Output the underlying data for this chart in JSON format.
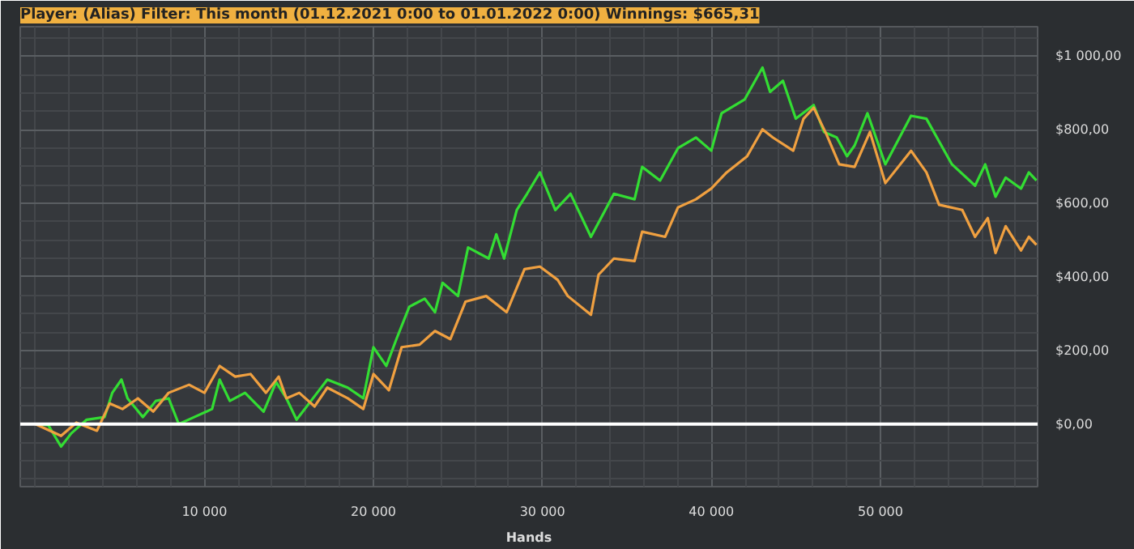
{
  "chart_data": {
    "type": "line",
    "title": "Player: (Alias) Filter: This month (01.12.2021 0:00 to 01.01.2022 0:00) Winnings: $665,31",
    "xlabel": "Hands",
    "xlim": [
      -900,
      59300
    ],
    "ylim": [
      -170,
      1080
    ],
    "xticks": [
      {
        "value": 10000,
        "label": "10 000"
      },
      {
        "value": 20000,
        "label": "20 000"
      },
      {
        "value": 30000,
        "label": "30 000"
      },
      {
        "value": 40000,
        "label": "40 000"
      },
      {
        "value": 50000,
        "label": "50 000"
      }
    ],
    "yticks": [
      {
        "value": 0,
        "label": "$0,00"
      },
      {
        "value": 200,
        "label": "$200,00"
      },
      {
        "value": 400,
        "label": "$400,00"
      },
      {
        "value": 600,
        "label": "$600,00"
      },
      {
        "value": 800,
        "label": "$800,00"
      },
      {
        "value": 1000,
        "label": "$1 000,00"
      }
    ],
    "grid": true,
    "line_style": "solid",
    "ref_lines": [
      {
        "axis": "y",
        "value": 0,
        "label": null,
        "color": "#ffffff"
      }
    ],
    "series": [
      {
        "color": "#33dd33",
        "x": [
          0,
          758,
          1515,
          2121,
          3030,
          4090,
          4545,
          5090,
          5450,
          6360,
          7120,
          7880,
          8480,
          9390,
          10450,
          10900,
          11500,
          12400,
          13500,
          14240,
          14850,
          15450,
          16670,
          17270,
          18480,
          19400,
          20000,
          20760,
          21360,
          22120,
          23030,
          23640,
          24090,
          25000,
          25600,
          26820,
          27270,
          27730,
          28480,
          29090,
          29850,
          30760,
          31660,
          32870,
          34230,
          35450,
          35900,
          36960,
          38020,
          39080,
          39990,
          40600,
          41960,
          43020,
          43470,
          44230,
          44990,
          46050,
          46660,
          47410,
          48020,
          48470,
          49230,
          50290,
          51810,
          52720,
          54230,
          55600,
          56200,
          56810,
          57410,
          58320,
          58780,
          59230
        ],
        "values": [
          0,
          -3,
          -61,
          -25,
          12,
          19,
          85,
          121,
          70,
          19,
          63,
          70,
          0,
          19,
          41,
          121,
          63,
          85,
          34,
          114,
          70,
          12,
          85,
          121,
          99,
          70,
          209,
          158,
          231,
          319,
          341,
          304,
          384,
          348,
          480,
          450,
          516,
          450,
          582,
          626,
          684,
          582,
          626,
          509,
          626,
          611,
          699,
          662,
          750,
          779,
          743,
          845,
          882,
          969,
          903,
          933,
          830,
          867,
          794,
          779,
          728,
          757,
          845,
          706,
          838,
          830,
          706,
          648,
          706,
          618,
          670,
          640,
          684,
          662
        ]
      },
      {
        "color": "#f0a040",
        "x": [
          0,
          1515,
          2420,
          3640,
          4390,
          5150,
          6060,
          6970,
          7880,
          9090,
          10000,
          10900,
          11820,
          12730,
          13640,
          14390,
          14850,
          15610,
          16520,
          17270,
          18480,
          19400,
          20000,
          20910,
          21670,
          22730,
          23640,
          24550,
          25450,
          26670,
          27880,
          28940,
          29850,
          30900,
          31500,
          32870,
          33320,
          34230,
          35450,
          35900,
          37260,
          38020,
          39080,
          39990,
          40900,
          42110,
          43020,
          43630,
          44840,
          45450,
          46050,
          46810,
          47560,
          48470,
          49380,
          50290,
          51810,
          52720,
          53470,
          54840,
          55600,
          56350,
          56810,
          57410,
          58320,
          58780,
          59230
        ],
        "values": [
          0,
          -32,
          4,
          -18,
          56,
          41,
          70,
          34,
          85,
          107,
          85,
          158,
          129,
          136,
          85,
          129,
          70,
          85,
          48,
          99,
          70,
          41,
          136,
          92,
          209,
          216,
          253,
          231,
          333,
          348,
          304,
          421,
          428,
          392,
          348,
          297,
          406,
          450,
          443,
          523,
          509,
          589,
          611,
          640,
          684,
          728,
          801,
          779,
          743,
          830,
          860,
          787,
          706,
          699,
          794,
          655,
          743,
          684,
          596,
          582,
          509,
          560,
          465,
          538,
          472,
          509,
          487
        ]
      }
    ]
  }
}
